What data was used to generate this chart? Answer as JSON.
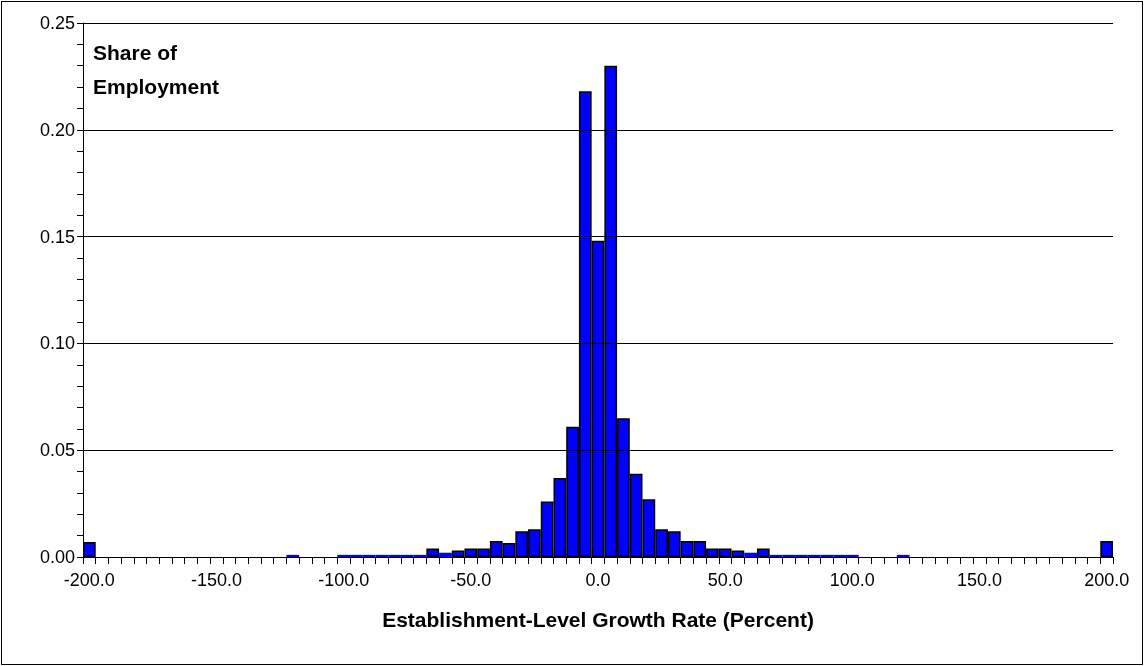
{
  "chart_data": {
    "type": "bar",
    "ylabel": "Share of Employment",
    "xlabel": "Establishment-Level Growth Rate (Percent)",
    "categories": [
      "-200.0",
      null,
      null,
      null,
      null,
      null,
      null,
      null,
      null,
      null,
      "-150.0",
      null,
      null,
      null,
      null,
      null,
      null,
      null,
      null,
      null,
      "-100.0",
      null,
      null,
      null,
      null,
      null,
      null,
      null,
      null,
      null,
      "-50.0",
      null,
      null,
      null,
      null,
      null,
      null,
      null,
      null,
      null,
      "0.0",
      null,
      null,
      null,
      null,
      null,
      null,
      null,
      null,
      null,
      "50.0",
      null,
      null,
      null,
      null,
      null,
      null,
      null,
      null,
      null,
      "100.0",
      null,
      null,
      null,
      null,
      null,
      null,
      null,
      null,
      null,
      "150.0",
      null,
      null,
      null,
      null,
      null,
      null,
      null,
      null,
      null,
      "200.0"
    ],
    "values": [
      0.007,
      0,
      0,
      0,
      0,
      0,
      0,
      0,
      0,
      0,
      0,
      0,
      0,
      0,
      0,
      0,
      0.001,
      0,
      0,
      0,
      0.001,
      0.001,
      0.001,
      0.001,
      0.001,
      0.001,
      0.001,
      0.004,
      0.002,
      0.003,
      0.004,
      0.004,
      0.0075,
      0.0065,
      0.012,
      0.013,
      0.026,
      0.037,
      0.061,
      0.218,
      0.148,
      0.23,
      0.065,
      0.039,
      0.027,
      0.013,
      0.012,
      0.0075,
      0.0075,
      0.004,
      0.004,
      0.003,
      0.002,
      0.004,
      0.001,
      0.001,
      0.001,
      0.001,
      0.001,
      0.001,
      0.001,
      0,
      0,
      0,
      0.001,
      0,
      0,
      0,
      0,
      0,
      0,
      0,
      0,
      0,
      0,
      0,
      0,
      0,
      0,
      0,
      0.0075
    ],
    "color": "#0000ff",
    "ylim": [
      0,
      0.25
    ],
    "yticks": [
      {
        "value": 0,
        "label": "0.00"
      },
      {
        "value": 0.01,
        "label": null
      },
      {
        "value": 0.02,
        "label": null
      },
      {
        "value": 0.03,
        "label": null
      },
      {
        "value": 0.04,
        "label": null
      },
      {
        "value": 0.05,
        "label": "0.05"
      },
      {
        "value": 0.06,
        "label": null
      },
      {
        "value": 0.07,
        "label": null
      },
      {
        "value": 0.08,
        "label": null
      },
      {
        "value": 0.09,
        "label": null
      },
      {
        "value": 0.1,
        "label": "0.10"
      },
      {
        "value": 0.11,
        "label": null
      },
      {
        "value": 0.12,
        "label": null
      },
      {
        "value": 0.13,
        "label": null
      },
      {
        "value": 0.14,
        "label": null
      },
      {
        "value": 0.15,
        "label": "0.15"
      },
      {
        "value": 0.16,
        "label": null
      },
      {
        "value": 0.17,
        "label": null
      },
      {
        "value": 0.18,
        "label": null
      },
      {
        "value": 0.19,
        "label": null
      },
      {
        "value": 0.2,
        "label": "0.20"
      },
      {
        "value": 0.21,
        "label": null
      },
      {
        "value": 0.22,
        "label": null
      },
      {
        "value": 0.23,
        "label": null
      },
      {
        "value": 0.24,
        "label": null
      },
      {
        "value": 0.25,
        "label": "0.25"
      }
    ],
    "grid": "y"
  }
}
